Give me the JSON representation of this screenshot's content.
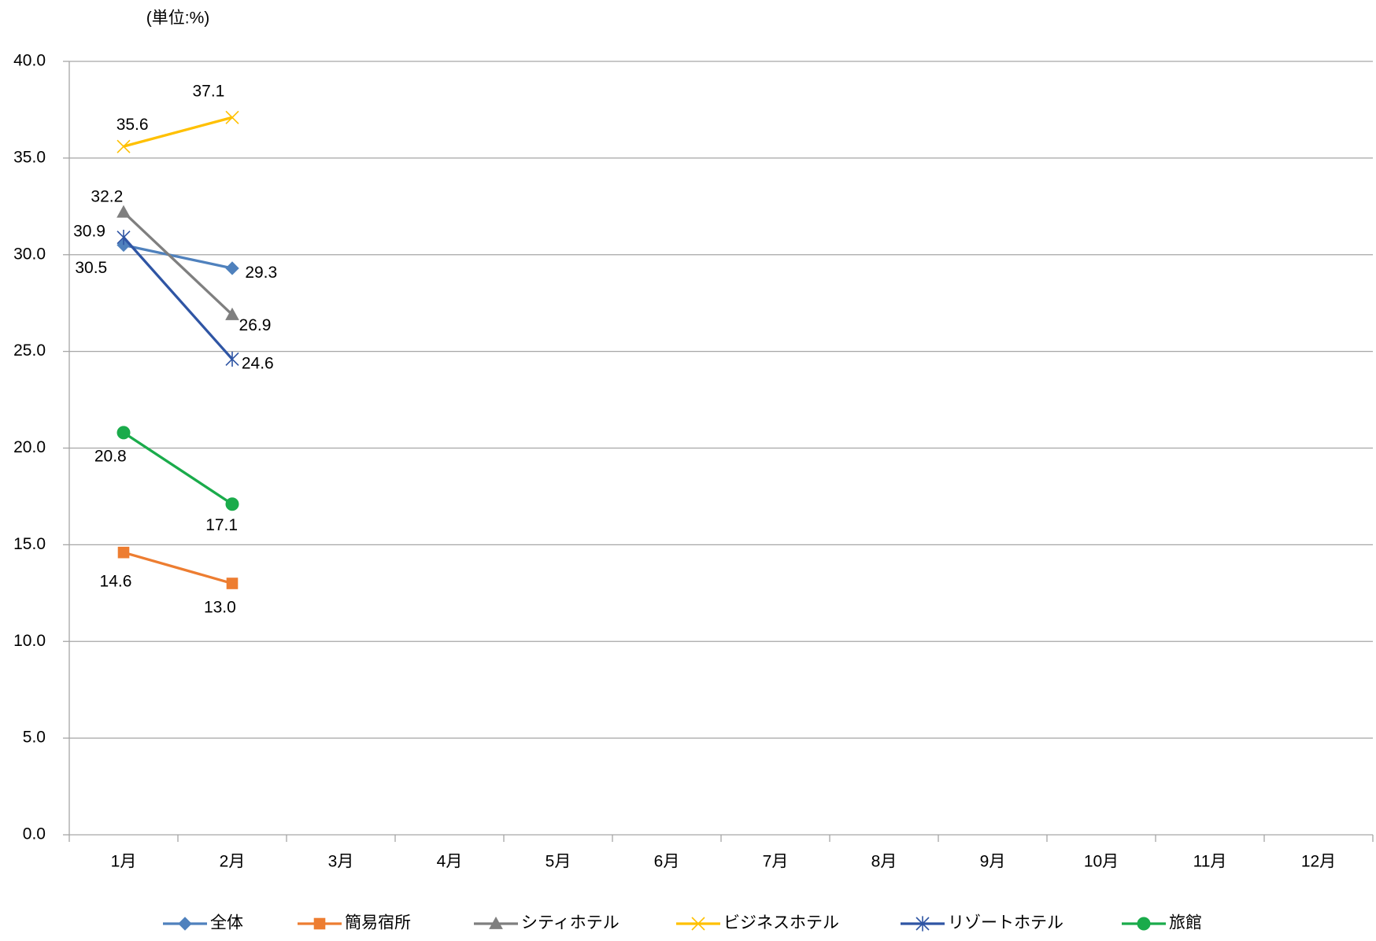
{
  "chart_data": {
    "type": "line",
    "unit": "(単位:%)",
    "categories": [
      "1月",
      "2月",
      "3月",
      "4月",
      "5月",
      "6月",
      "7月",
      "8月",
      "9月",
      "10月",
      "11月",
      "12月"
    ],
    "series": [
      {
        "name": "全体",
        "color": "#4f81bd",
        "marker": "diamond",
        "values": [
          30.5,
          29.3,
          null,
          null,
          null,
          null,
          null,
          null,
          null,
          null,
          null,
          null
        ]
      },
      {
        "name": "簡易宿所",
        "color": "#ed7d31",
        "marker": "square",
        "values": [
          14.6,
          13.0,
          null,
          null,
          null,
          null,
          null,
          null,
          null,
          null,
          null,
          null
        ],
        "value_labels": [
          "14.6",
          "13.0",
          null,
          null,
          null,
          null,
          null,
          null,
          null,
          null,
          null,
          null
        ]
      },
      {
        "name": "シティホテル",
        "color": "#7f7f7f",
        "marker": "triangle",
        "values": [
          32.2,
          26.9,
          null,
          null,
          null,
          null,
          null,
          null,
          null,
          null,
          null,
          null
        ]
      },
      {
        "name": "ビジネスホテル",
        "color": "#ffc000",
        "marker": "x",
        "values": [
          35.6,
          37.1,
          null,
          null,
          null,
          null,
          null,
          null,
          null,
          null,
          null,
          null
        ]
      },
      {
        "name": "リゾートホテル",
        "color": "#2f55a4",
        "marker": "star",
        "values": [
          30.9,
          24.6,
          null,
          null,
          null,
          null,
          null,
          null,
          null,
          null,
          null,
          null
        ]
      },
      {
        "name": "旅館",
        "color": "#1aab4b",
        "marker": "circle",
        "values": [
          20.8,
          17.1,
          null,
          null,
          null,
          null,
          null,
          null,
          null,
          null,
          null,
          null
        ]
      }
    ],
    "ylim": [
      0,
      40
    ],
    "yticks": [
      {
        "value": 0,
        "label": "0.0"
      },
      {
        "value": 5,
        "label": "5.0"
      },
      {
        "value": 10,
        "label": "10.0"
      },
      {
        "value": 15,
        "label": "15.0"
      },
      {
        "value": 20,
        "label": "20.0"
      },
      {
        "value": 25,
        "label": "25.0"
      },
      {
        "value": 30,
        "label": "30.0"
      },
      {
        "value": 35,
        "label": "35.0"
      },
      {
        "value": 40,
        "label": "40.0"
      }
    ],
    "grid": true,
    "legend": "bottom"
  }
}
